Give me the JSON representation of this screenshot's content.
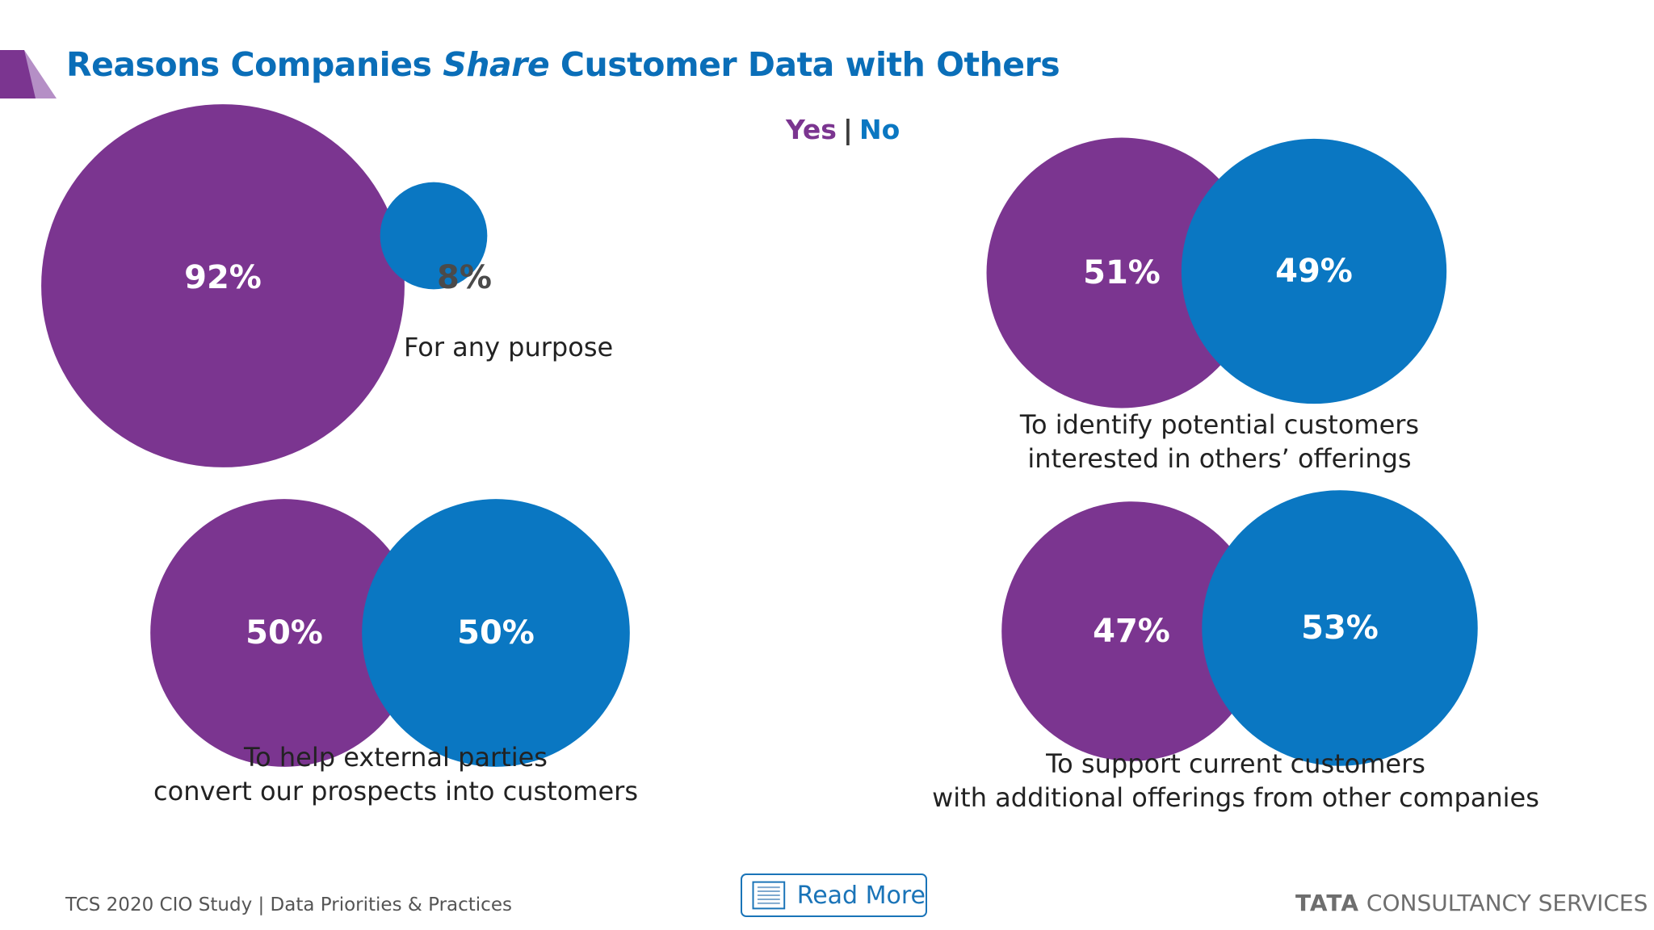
{
  "title": {
    "prefix": "Reasons Companies ",
    "emphasis": "Share",
    "suffix": " Customer Data with Others"
  },
  "legend": {
    "yes": "Yes",
    "separator": "|",
    "no": "No"
  },
  "colors": {
    "yes": "#7b3590",
    "no": "#0a77c2",
    "title": "#0a6eb8"
  },
  "chart_data": {
    "type": "bubble",
    "series": [
      {
        "name": "Yes",
        "color": "#7b3590"
      },
      {
        "name": "No",
        "color": "#0a77c2"
      }
    ],
    "groups": [
      {
        "label_lines": [
          "For any purpose"
        ],
        "yes": 92,
        "no": 8,
        "yes_label": "92%",
        "no_label": "8%"
      },
      {
        "label_lines": [
          "To identify potential customers",
          "interested in others’ offerings"
        ],
        "yes": 51,
        "no": 49,
        "yes_label": "51%",
        "no_label": "49%"
      },
      {
        "label_lines": [
          "To help external parties",
          "convert our prospects into customers"
        ],
        "yes": 50,
        "no": 50,
        "yes_label": "50%",
        "no_label": "50%"
      },
      {
        "label_lines": [
          "To support current customers",
          "with additional offerings from other companies"
        ],
        "yes": 47,
        "no": 53,
        "yes_label": "47%",
        "no_label": "53%"
      }
    ]
  },
  "footer": {
    "study": "TCS 2020 CIO Study | Data Priorities & Practices",
    "read_more": "Read More",
    "brand_bold": "TATA",
    "brand_rest": " CONSULTANCY SERVICES"
  },
  "icons": {
    "read_more": "document-icon",
    "corner": "corner-triangle-icon"
  }
}
